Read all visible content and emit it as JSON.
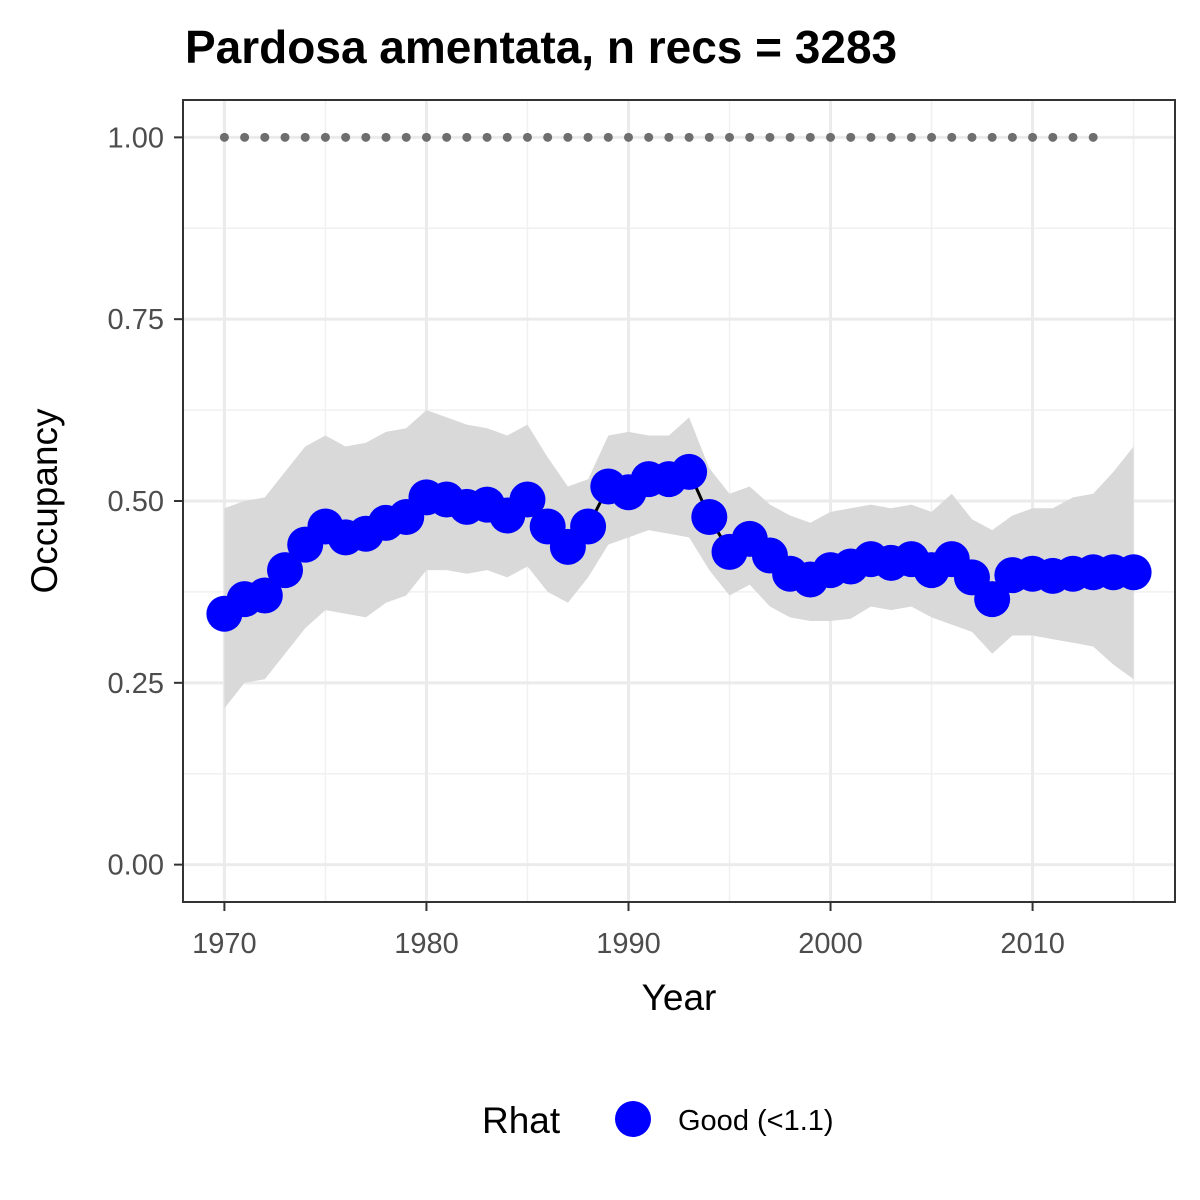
{
  "chart_data": {
    "type": "line",
    "title": "Pardosa amentata, n recs = 3283",
    "xlabel": "Year",
    "ylabel": "Occupancy",
    "xlim": [
      1968,
      2017
    ],
    "ylim": [
      -0.05,
      1.05
    ],
    "x_ticks": [
      "1970",
      "1980",
      "1990",
      "2000",
      "2010"
    ],
    "y_ticks": [
      "0.00",
      "0.25",
      "0.50",
      "0.75",
      "1.00"
    ],
    "grid": true,
    "legend": {
      "title": "Rhat",
      "position": "bottom",
      "entries": [
        "Good (<1.1)"
      ]
    },
    "colors": {
      "points": "#0000ff",
      "line": "#000000",
      "ribbon": "#d9d9d9",
      "reference": "#6e6e6e"
    },
    "x": [
      1970,
      1971,
      1972,
      1973,
      1974,
      1975,
      1976,
      1977,
      1978,
      1979,
      1980,
      1981,
      1982,
      1983,
      1984,
      1985,
      1986,
      1987,
      1988,
      1989,
      1990,
      1991,
      1992,
      1993,
      1994,
      1995,
      1996,
      1997,
      1998,
      1999,
      2000,
      2001,
      2002,
      2003,
      2004,
      2005,
      2006,
      2007,
      2008,
      2009,
      2010,
      2011,
      2012,
      2013,
      2014,
      2015
    ],
    "series": [
      {
        "rhat": "Good (<1.1)",
        "values": [
          0.345,
          0.365,
          0.37,
          0.405,
          0.44,
          0.465,
          0.45,
          0.455,
          0.47,
          0.478,
          0.505,
          0.502,
          0.492,
          0.495,
          0.48,
          0.502,
          0.465,
          0.437,
          0.465,
          0.52,
          0.512,
          0.53,
          0.53,
          0.54,
          0.478,
          0.43,
          0.448,
          0.425,
          0.4,
          0.392,
          0.405,
          0.41,
          0.42,
          0.415,
          0.42,
          0.405,
          0.42,
          0.395,
          0.365,
          0.398,
          0.4,
          0.397,
          0.4,
          0.402,
          0.402,
          0.402
        ]
      }
    ],
    "ribbon": {
      "lower": [
        0.215,
        0.25,
        0.255,
        0.29,
        0.325,
        0.35,
        0.345,
        0.34,
        0.36,
        0.37,
        0.405,
        0.405,
        0.4,
        0.405,
        0.395,
        0.41,
        0.375,
        0.36,
        0.395,
        0.44,
        0.45,
        0.46,
        0.455,
        0.45,
        0.405,
        0.37,
        0.385,
        0.355,
        0.34,
        0.335,
        0.335,
        0.338,
        0.355,
        0.35,
        0.355,
        0.34,
        0.33,
        0.32,
        0.29,
        0.315,
        0.315,
        0.31,
        0.305,
        0.3,
        0.275,
        0.255
      ],
      "upper": [
        0.49,
        0.5,
        0.505,
        0.54,
        0.575,
        0.59,
        0.575,
        0.58,
        0.595,
        0.6,
        0.625,
        0.615,
        0.605,
        0.6,
        0.59,
        0.605,
        0.56,
        0.52,
        0.53,
        0.59,
        0.595,
        0.59,
        0.59,
        0.615,
        0.545,
        0.51,
        0.52,
        0.495,
        0.48,
        0.47,
        0.485,
        0.49,
        0.495,
        0.49,
        0.495,
        0.485,
        0.51,
        0.475,
        0.46,
        0.48,
        0.49,
        0.49,
        0.505,
        0.51,
        0.54,
        0.575
      ]
    },
    "reference_line": {
      "y": 1.0,
      "x": [
        1970,
        1971,
        1972,
        1973,
        1974,
        1975,
        1976,
        1977,
        1978,
        1979,
        1980,
        1981,
        1982,
        1983,
        1984,
        1985,
        1986,
        1987,
        1988,
        1989,
        1990,
        1991,
        1992,
        1993,
        1994,
        1995,
        1996,
        1997,
        1998,
        1999,
        2000,
        2001,
        2002,
        2003,
        2004,
        2005,
        2006,
        2007,
        2008,
        2009,
        2010,
        2011,
        2012,
        2013
      ]
    }
  }
}
